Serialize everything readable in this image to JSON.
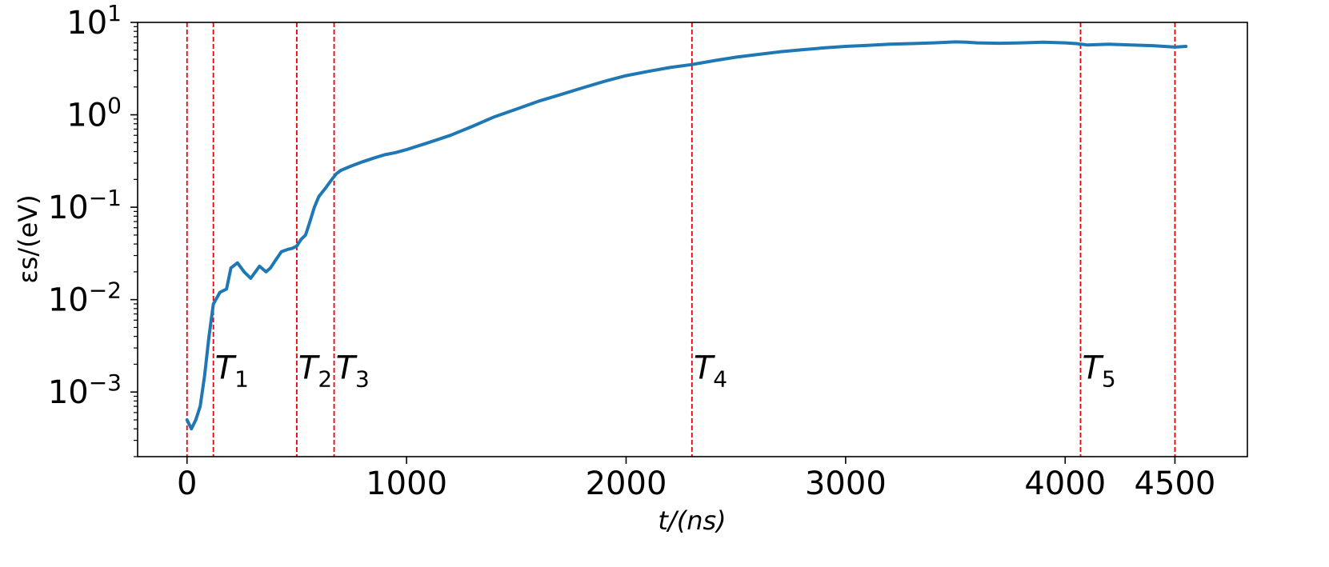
{
  "chart_data": {
    "type": "line",
    "xlabel": "t/(ns)",
    "ylabel": "εs/(eV)",
    "x_scale": "linear",
    "y_scale": "log",
    "xlim": [
      -225,
      4830
    ],
    "ylim": [
      0.0002,
      10
    ],
    "x_ticks": [
      {
        "value": 0,
        "label": "0"
      },
      {
        "value": 1000,
        "label": "1000"
      },
      {
        "value": 2000,
        "label": "2000"
      },
      {
        "value": 3000,
        "label": "3000"
      },
      {
        "value": 4000,
        "label": "4000"
      },
      {
        "value": 4500,
        "label": "4500"
      }
    ],
    "y_ticks": [
      {
        "value": 0.001,
        "base": "10",
        "exp": "−3"
      },
      {
        "value": 0.01,
        "base": "10",
        "exp": "−2"
      },
      {
        "value": 0.1,
        "base": "10",
        "exp": "−1"
      },
      {
        "value": 1,
        "base": "10",
        "exp": "0"
      },
      {
        "value": 10,
        "base": "10",
        "exp": "1"
      }
    ],
    "grid": false,
    "series": [
      {
        "color": "#1f77b4",
        "x": [
          0,
          20,
          40,
          60,
          80,
          100,
          120,
          150,
          180,
          200,
          230,
          260,
          290,
          330,
          360,
          380,
          400,
          430,
          460,
          480,
          500,
          520,
          540,
          560,
          580,
          600,
          630,
          660,
          680,
          700,
          750,
          800,
          850,
          900,
          950,
          1000,
          1100,
          1200,
          1300,
          1400,
          1500,
          1600,
          1700,
          1800,
          1900,
          2000,
          2100,
          2200,
          2300,
          2400,
          2500,
          2600,
          2700,
          2800,
          2900,
          3000,
          3100,
          3200,
          3300,
          3400,
          3500,
          3550,
          3600,
          3700,
          3800,
          3900,
          4000,
          4050,
          4100,
          4200,
          4300,
          4400,
          4500,
          4550
        ],
        "y": [
          0.0005,
          0.0004,
          0.0005,
          0.0007,
          0.0015,
          0.004,
          0.009,
          0.012,
          0.013,
          0.022,
          0.025,
          0.02,
          0.017,
          0.023,
          0.02,
          0.022,
          0.026,
          0.033,
          0.035,
          0.036,
          0.038,
          0.045,
          0.05,
          0.07,
          0.1,
          0.13,
          0.16,
          0.2,
          0.23,
          0.25,
          0.28,
          0.31,
          0.34,
          0.37,
          0.39,
          0.42,
          0.5,
          0.6,
          0.75,
          0.95,
          1.15,
          1.4,
          1.65,
          1.95,
          2.3,
          2.65,
          2.95,
          3.25,
          3.5,
          3.85,
          4.2,
          4.5,
          4.8,
          5.05,
          5.3,
          5.5,
          5.65,
          5.8,
          5.9,
          6.0,
          6.15,
          6.1,
          6.0,
          5.95,
          6.0,
          6.1,
          6.0,
          5.9,
          5.7,
          5.8,
          5.7,
          5.6,
          5.4,
          5.5
        ]
      }
    ],
    "markers": [
      {
        "x": 0,
        "label": ""
      },
      {
        "x": 120,
        "label": "T",
        "sub": "1"
      },
      {
        "x": 500,
        "label": "T",
        "sub": "2"
      },
      {
        "x": 670,
        "label": "T",
        "sub": "3"
      },
      {
        "x": 2300,
        "label": "T",
        "sub": "4"
      },
      {
        "x": 4070,
        "label": "T",
        "sub": "5"
      },
      {
        "x": 4500,
        "label": ""
      }
    ],
    "marker_color": "#e8000b",
    "marker_label_y": 0.0014
  }
}
